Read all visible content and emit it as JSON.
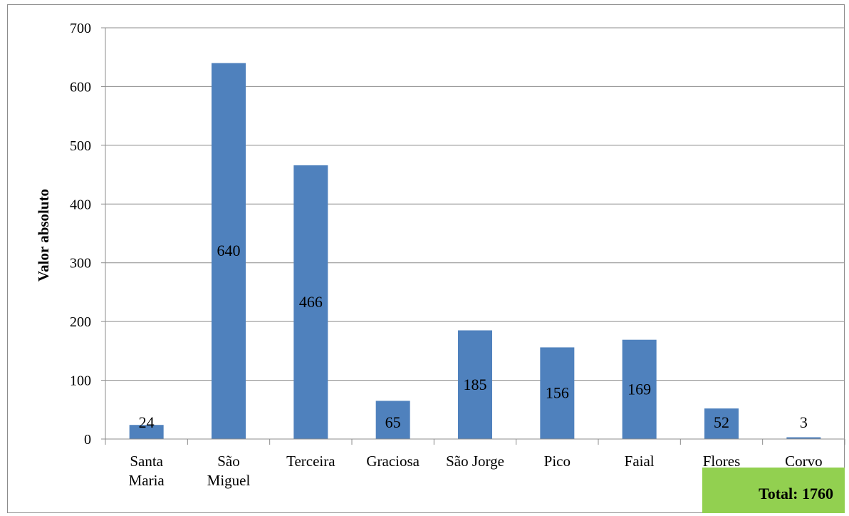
{
  "chart_data": {
    "type": "bar",
    "title": "",
    "xlabel": "",
    "ylabel": "Valor absoluto",
    "categories": [
      [
        "Santa",
        "Maria"
      ],
      [
        "São",
        "Miguel"
      ],
      [
        "Terceira"
      ],
      [
        "Graciosa"
      ],
      [
        "São Jorge"
      ],
      [
        "Pico"
      ],
      [
        "Faial"
      ],
      [
        "Flores"
      ],
      [
        "Corvo"
      ]
    ],
    "values": [
      24,
      640,
      466,
      65,
      185,
      156,
      169,
      52,
      3
    ],
    "data_labels": [
      "24",
      "640",
      "466",
      "65",
      "185",
      "156",
      "169",
      "52",
      "3"
    ],
    "ylim": [
      0,
      700
    ],
    "yticks": [
      0,
      100,
      200,
      300,
      400,
      500,
      600,
      700
    ],
    "grid": true,
    "legend": "none",
    "bar_color": "#4f81bd",
    "total_label": "Total: 1760",
    "total_box_color": "#92d050"
  }
}
